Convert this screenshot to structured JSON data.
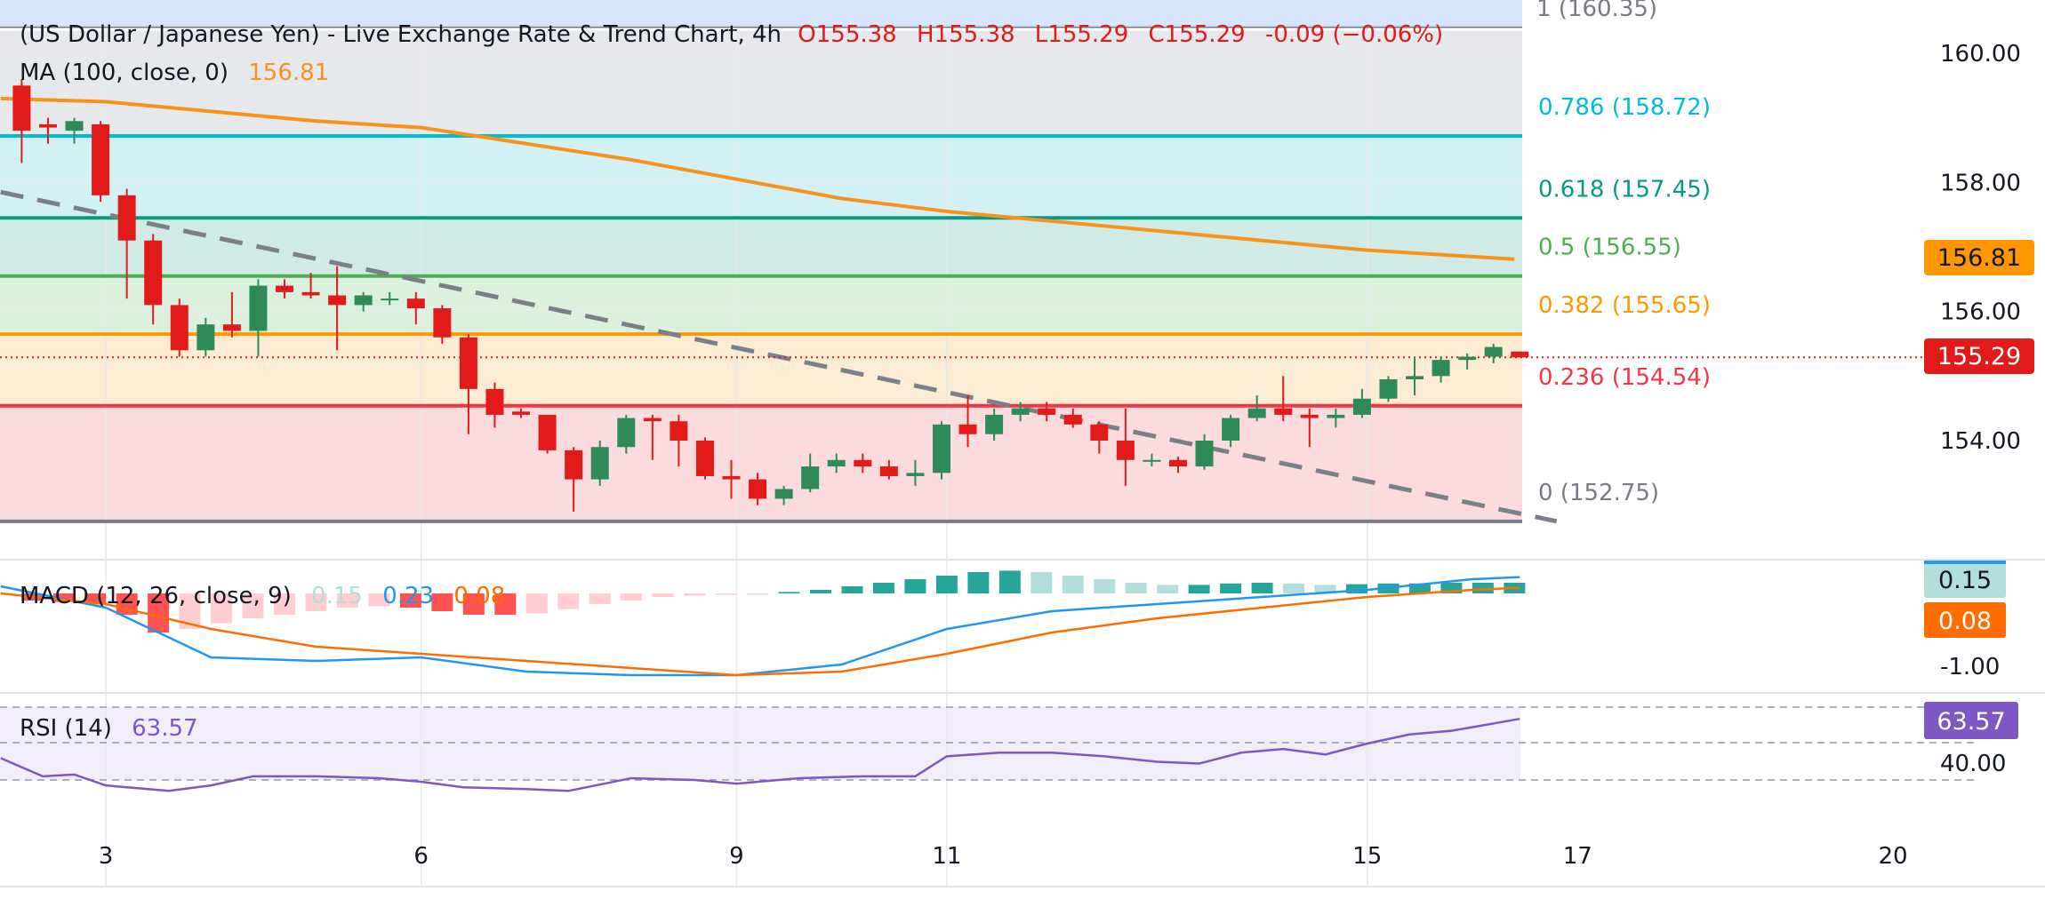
{
  "header": {
    "title": "(US Dollar / Japanese Yen) - Live Exchange Rate & Trend Chart, 4h",
    "ohlc": {
      "o": "O155.38",
      "h": "H155.38",
      "l": "L155.29",
      "c": "C155.29",
      "chg": "-0.09 (−0.06%)"
    },
    "ma_label": "MA (100, close, 0)",
    "ma_value": "156.81",
    "top_fib_label": "1 (160.35)"
  },
  "colors": {
    "up": "#2e8b57",
    "down": "#e31a1a",
    "ma": "#f7931a",
    "macd": "#2196f3",
    "signal": "#ff6d00",
    "rsi": "#7e57c2",
    "fib_0": "#787b86",
    "fib_0236": "#f23645",
    "fib_0382": "#ff9800",
    "fib_05": "#4caf50",
    "fib_0618": "#089981",
    "fib_0786": "#00bcd4",
    "fib_1": "#787b86",
    "trend": "#7b7f88"
  },
  "price_axis": {
    "ticks": [
      "160.00",
      "158.00",
      "156.00",
      "154.00"
    ]
  },
  "time_axis": {
    "ticks": [
      "3",
      "6",
      "9",
      "11",
      "15",
      "17",
      "20"
    ]
  },
  "fib_levels": [
    {
      "ratio": 1,
      "price": 160.35,
      "label": "1 (160.35)"
    },
    {
      "ratio": 0.786,
      "price": 158.72,
      "label": "0.786 (158.72)"
    },
    {
      "ratio": 0.618,
      "price": 157.45,
      "label": "0.618 (157.45)"
    },
    {
      "ratio": 0.5,
      "price": 156.55,
      "label": "0.5 (156.55)"
    },
    {
      "ratio": 0.382,
      "price": 155.65,
      "label": "0.382 (155.65)"
    },
    {
      "ratio": 0.236,
      "price": 154.54,
      "label": "0.236 (154.54)"
    },
    {
      "ratio": 0,
      "price": 152.75,
      "label": "0 (152.75)"
    }
  ],
  "price_tags": {
    "ma": "156.81",
    "last": "155.29"
  },
  "macd": {
    "label": "MACD (12, 26, close, 9)",
    "hist_value": "0.15",
    "macd_value": "0.23",
    "signal_value": "0.08",
    "axis_tick": "-1.00",
    "tag_hist": "0.15",
    "tag_signal": "0.08"
  },
  "rsi": {
    "label": "RSI (14)",
    "value": "63.57",
    "axis_tick": "40.00",
    "tag": "63.57"
  },
  "chart_data": {
    "type": "candlestick",
    "title": "(US Dollar / Japanese Yen) - Live Exchange Rate & Trend Chart, 4h",
    "x_axis_ticks": [
      "3",
      "6",
      "9",
      "11",
      "15",
      "17",
      "20"
    ],
    "y_axis_ticks": [
      160.0,
      158.0,
      156.0,
      154.0
    ],
    "ylim": [
      152.3,
      160.8
    ],
    "last_close": 155.29,
    "candles": [
      {
        "t": 2.2,
        "o": 159.5,
        "h": 159.6,
        "l": 158.3,
        "c": 158.8
      },
      {
        "t": 2.45,
        "o": 158.9,
        "h": 159.0,
        "l": 158.6,
        "c": 158.85
      },
      {
        "t": 2.7,
        "o": 158.8,
        "h": 159.0,
        "l": 158.6,
        "c": 158.95
      },
      {
        "t": 2.95,
        "o": 158.9,
        "h": 158.95,
        "l": 157.7,
        "c": 157.8
      },
      {
        "t": 3.2,
        "o": 157.8,
        "h": 157.9,
        "l": 156.2,
        "c": 157.1
      },
      {
        "t": 3.45,
        "o": 157.1,
        "h": 157.2,
        "l": 155.8,
        "c": 156.1
      },
      {
        "t": 3.7,
        "o": 156.1,
        "h": 156.2,
        "l": 155.3,
        "c": 155.4
      },
      {
        "t": 3.95,
        "o": 155.4,
        "h": 155.9,
        "l": 155.3,
        "c": 155.8
      },
      {
        "t": 4.2,
        "o": 155.8,
        "h": 156.3,
        "l": 155.6,
        "c": 155.7
      },
      {
        "t": 4.45,
        "o": 155.7,
        "h": 156.5,
        "l": 155.3,
        "c": 156.4
      },
      {
        "t": 4.7,
        "o": 156.4,
        "h": 156.5,
        "l": 156.2,
        "c": 156.3
      },
      {
        "t": 4.95,
        "o": 156.3,
        "h": 156.6,
        "l": 156.2,
        "c": 156.25
      },
      {
        "t": 5.2,
        "o": 156.25,
        "h": 156.7,
        "l": 155.4,
        "c": 156.1
      },
      {
        "t": 5.45,
        "o": 156.1,
        "h": 156.3,
        "l": 156.0,
        "c": 156.25
      },
      {
        "t": 5.7,
        "o": 156.2,
        "h": 156.3,
        "l": 156.1,
        "c": 156.2
      },
      {
        "t": 5.95,
        "o": 156.2,
        "h": 156.3,
        "l": 155.8,
        "c": 156.05
      },
      {
        "t": 6.2,
        "o": 156.05,
        "h": 156.1,
        "l": 155.5,
        "c": 155.6
      },
      {
        "t": 6.45,
        "o": 155.6,
        "h": 155.65,
        "l": 154.1,
        "c": 154.8
      },
      {
        "t": 6.7,
        "o": 154.8,
        "h": 154.9,
        "l": 154.2,
        "c": 154.4
      },
      {
        "t": 6.95,
        "o": 154.45,
        "h": 154.5,
        "l": 154.35,
        "c": 154.4
      },
      {
        "t": 7.2,
        "o": 154.4,
        "h": 154.4,
        "l": 153.8,
        "c": 153.85
      },
      {
        "t": 7.45,
        "o": 153.85,
        "h": 153.9,
        "l": 152.9,
        "c": 153.4
      },
      {
        "t": 7.7,
        "o": 153.4,
        "h": 154.0,
        "l": 153.3,
        "c": 153.9
      },
      {
        "t": 7.95,
        "o": 153.9,
        "h": 154.4,
        "l": 153.8,
        "c": 154.35
      },
      {
        "t": 8.2,
        "o": 154.35,
        "h": 154.4,
        "l": 153.7,
        "c": 154.3
      },
      {
        "t": 8.45,
        "o": 154.3,
        "h": 154.4,
        "l": 153.6,
        "c": 154.0
      },
      {
        "t": 8.7,
        "o": 154.0,
        "h": 154.05,
        "l": 153.4,
        "c": 153.45
      },
      {
        "t": 8.95,
        "o": 153.45,
        "h": 153.7,
        "l": 153.1,
        "c": 153.4
      },
      {
        "t": 9.2,
        "o": 153.4,
        "h": 153.5,
        "l": 153.0,
        "c": 153.1
      },
      {
        "t": 9.45,
        "o": 153.1,
        "h": 153.3,
        "l": 153.0,
        "c": 153.25
      },
      {
        "t": 9.7,
        "o": 153.25,
        "h": 153.8,
        "l": 153.2,
        "c": 153.6
      },
      {
        "t": 9.95,
        "o": 153.6,
        "h": 153.8,
        "l": 153.5,
        "c": 153.7
      },
      {
        "t": 10.2,
        "o": 153.7,
        "h": 153.8,
        "l": 153.5,
        "c": 153.6
      },
      {
        "t": 10.45,
        "o": 153.6,
        "h": 153.7,
        "l": 153.4,
        "c": 153.45
      },
      {
        "t": 10.7,
        "o": 153.45,
        "h": 153.7,
        "l": 153.3,
        "c": 153.5
      },
      {
        "t": 10.95,
        "o": 153.5,
        "h": 154.3,
        "l": 153.4,
        "c": 154.25
      },
      {
        "t": 11.2,
        "o": 154.25,
        "h": 154.7,
        "l": 153.9,
        "c": 154.1
      },
      {
        "t": 11.45,
        "o": 154.1,
        "h": 154.5,
        "l": 154.0,
        "c": 154.4
      },
      {
        "t": 11.7,
        "o": 154.4,
        "h": 154.6,
        "l": 154.3,
        "c": 154.5
      },
      {
        "t": 11.95,
        "o": 154.5,
        "h": 154.6,
        "l": 154.3,
        "c": 154.4
      },
      {
        "t": 12.2,
        "o": 154.4,
        "h": 154.5,
        "l": 154.2,
        "c": 154.25
      },
      {
        "t": 12.45,
        "o": 154.25,
        "h": 154.3,
        "l": 153.8,
        "c": 154.0
      },
      {
        "t": 12.7,
        "o": 154.0,
        "h": 154.5,
        "l": 153.3,
        "c": 153.7
      },
      {
        "t": 12.95,
        "o": 153.7,
        "h": 153.8,
        "l": 153.6,
        "c": 153.7
      },
      {
        "t": 13.2,
        "o": 153.7,
        "h": 153.75,
        "l": 153.5,
        "c": 153.6
      },
      {
        "t": 13.45,
        "o": 153.6,
        "h": 154.1,
        "l": 153.55,
        "c": 154.0
      },
      {
        "t": 13.7,
        "o": 154.0,
        "h": 154.4,
        "l": 153.9,
        "c": 154.35
      },
      {
        "t": 13.95,
        "o": 154.35,
        "h": 154.7,
        "l": 154.3,
        "c": 154.5
      },
      {
        "t": 14.2,
        "o": 154.5,
        "h": 155.0,
        "l": 154.3,
        "c": 154.4
      },
      {
        "t": 14.45,
        "o": 154.4,
        "h": 154.5,
        "l": 153.9,
        "c": 154.35
      },
      {
        "t": 14.7,
        "o": 154.35,
        "h": 154.5,
        "l": 154.2,
        "c": 154.4
      },
      {
        "t": 14.95,
        "o": 154.4,
        "h": 154.8,
        "l": 154.35,
        "c": 154.65
      },
      {
        "t": 15.2,
        "o": 154.65,
        "h": 155.0,
        "l": 154.6,
        "c": 154.95
      },
      {
        "t": 15.45,
        "o": 154.95,
        "h": 155.3,
        "l": 154.7,
        "c": 155.0
      },
      {
        "t": 15.7,
        "o": 155.0,
        "h": 155.3,
        "l": 154.9,
        "c": 155.25
      },
      {
        "t": 15.95,
        "o": 155.25,
        "h": 155.35,
        "l": 155.1,
        "c": 155.3
      },
      {
        "t": 16.2,
        "o": 155.3,
        "h": 155.5,
        "l": 155.2,
        "c": 155.45
      },
      {
        "t": 16.45,
        "o": 155.38,
        "h": 155.38,
        "l": 155.29,
        "c": 155.29
      }
    ],
    "ma100": [
      [
        2.0,
        159.3
      ],
      [
        3.0,
        159.25
      ],
      [
        4.0,
        159.1
      ],
      [
        5.0,
        158.95
      ],
      [
        6.0,
        158.85
      ],
      [
        7.0,
        158.6
      ],
      [
        8.0,
        158.35
      ],
      [
        9.0,
        158.05
      ],
      [
        10.0,
        157.75
      ],
      [
        11.0,
        157.55
      ],
      [
        12.0,
        157.4
      ],
      [
        13.0,
        157.25
      ],
      [
        14.0,
        157.1
      ],
      [
        15.0,
        156.95
      ],
      [
        16.0,
        156.85
      ],
      [
        16.4,
        156.81
      ]
    ],
    "trendline": [
      [
        2.0,
        157.85
      ],
      [
        16.8,
        152.75
      ]
    ],
    "macd_series": [
      [
        2.0,
        0.1
      ],
      [
        3.0,
        -0.2
      ],
      [
        4.0,
        -0.9
      ],
      [
        5.0,
        -0.95
      ],
      [
        6.0,
        -0.9
      ],
      [
        7.0,
        -1.1
      ],
      [
        8.0,
        -1.15
      ],
      [
        9.0,
        -1.15
      ],
      [
        10.0,
        -1.0
      ],
      [
        11.0,
        -0.5
      ],
      [
        12.0,
        -0.25
      ],
      [
        13.0,
        -0.15
      ],
      [
        14.0,
        -0.05
      ],
      [
        15.0,
        0.05
      ],
      [
        16.0,
        0.2
      ],
      [
        16.45,
        0.23
      ]
    ],
    "signal_series": [
      [
        2.0,
        0.0
      ],
      [
        3.0,
        -0.15
      ],
      [
        4.0,
        -0.5
      ],
      [
        5.0,
        -0.75
      ],
      [
        6.0,
        -0.85
      ],
      [
        7.0,
        -0.95
      ],
      [
        8.0,
        -1.05
      ],
      [
        9.0,
        -1.15
      ],
      [
        10.0,
        -1.1
      ],
      [
        11.0,
        -0.85
      ],
      [
        12.0,
        -0.55
      ],
      [
        13.0,
        -0.35
      ],
      [
        14.0,
        -0.2
      ],
      [
        15.0,
        -0.05
      ],
      [
        16.0,
        0.05
      ],
      [
        16.45,
        0.08
      ]
    ],
    "rsi_series": [
      [
        2.0,
        42
      ],
      [
        2.4,
        32
      ],
      [
        2.7,
        33
      ],
      [
        3.0,
        27
      ],
      [
        3.6,
        24
      ],
      [
        4.0,
        27
      ],
      [
        4.4,
        32
      ],
      [
        5.0,
        32
      ],
      [
        5.6,
        31
      ],
      [
        6.0,
        29
      ],
      [
        6.4,
        26
      ],
      [
        7.0,
        25
      ],
      [
        7.4,
        24
      ],
      [
        8.0,
        31
      ],
      [
        8.6,
        30
      ],
      [
        9.0,
        28
      ],
      [
        9.6,
        31
      ],
      [
        10.2,
        32
      ],
      [
        10.7,
        32
      ],
      [
        11.0,
        43
      ],
      [
        11.5,
        45
      ],
      [
        12.0,
        45
      ],
      [
        12.5,
        43
      ],
      [
        13.0,
        40
      ],
      [
        13.4,
        39
      ],
      [
        13.8,
        45
      ],
      [
        14.2,
        47
      ],
      [
        14.6,
        44
      ],
      [
        15.0,
        50
      ],
      [
        15.4,
        55
      ],
      [
        15.8,
        57
      ],
      [
        16.2,
        61
      ],
      [
        16.45,
        63.57
      ]
    ],
    "macd_hist": [
      [
        2.3,
        -0.1
      ],
      [
        2.6,
        -0.12
      ],
      [
        2.9,
        -0.15
      ],
      [
        3.2,
        -0.3
      ],
      [
        3.5,
        -0.55
      ],
      [
        3.8,
        -0.5
      ],
      [
        4.1,
        -0.42
      ],
      [
        4.4,
        -0.35
      ],
      [
        4.7,
        -0.3
      ],
      [
        5.0,
        -0.25
      ],
      [
        5.3,
        -0.2
      ],
      [
        5.6,
        -0.18
      ],
      [
        5.9,
        -0.2
      ],
      [
        6.2,
        -0.25
      ],
      [
        6.5,
        -0.3
      ],
      [
        6.8,
        -0.3
      ],
      [
        7.1,
        -0.28
      ],
      [
        7.4,
        -0.22
      ],
      [
        7.7,
        -0.15
      ],
      [
        8.0,
        -0.1
      ],
      [
        8.3,
        -0.05
      ],
      [
        8.6,
        -0.03
      ],
      [
        8.9,
        -0.02
      ],
      [
        9.2,
        -0.01
      ],
      [
        9.5,
        0.02
      ],
      [
        9.8,
        0.05
      ],
      [
        10.1,
        0.1
      ],
      [
        10.4,
        0.15
      ],
      [
        10.7,
        0.2
      ],
      [
        11.0,
        0.25
      ],
      [
        11.3,
        0.3
      ],
      [
        11.6,
        0.32
      ],
      [
        11.9,
        0.3
      ],
      [
        12.2,
        0.25
      ],
      [
        12.5,
        0.2
      ],
      [
        12.8,
        0.15
      ],
      [
        13.1,
        0.12
      ],
      [
        13.4,
        0.12
      ],
      [
        13.7,
        0.14
      ],
      [
        14.0,
        0.15
      ],
      [
        14.3,
        0.14
      ],
      [
        14.6,
        0.12
      ],
      [
        14.9,
        0.13
      ],
      [
        15.2,
        0.14
      ],
      [
        15.5,
        0.14
      ],
      [
        15.8,
        0.15
      ],
      [
        16.1,
        0.15
      ],
      [
        16.4,
        0.15
      ]
    ]
  }
}
